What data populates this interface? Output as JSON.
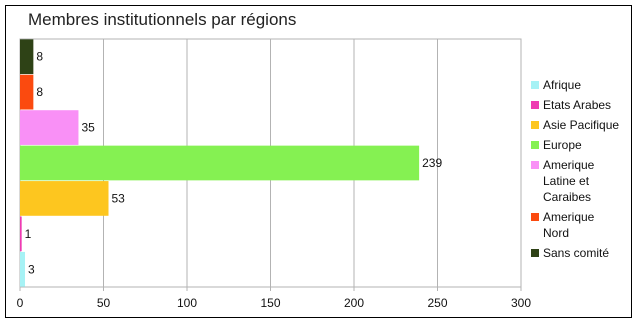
{
  "chart_data": {
    "type": "bar",
    "orientation": "horizontal",
    "title": "Membres institutionnels par régions",
    "xlabel": "",
    "ylabel": "",
    "xlim": [
      0,
      300
    ],
    "xticks": [
      0,
      50,
      100,
      150,
      200,
      250,
      300
    ],
    "grid": true,
    "legend_position": "right",
    "series": [
      {
        "name": "Afrique",
        "value": 3,
        "color": "#a6f2f5"
      },
      {
        "name": "Etats Arabes",
        "value": 1,
        "color": "#ee3bb2"
      },
      {
        "name": "Asie Pacifique",
        "value": 53,
        "color": "#fdc61f"
      },
      {
        "name": "Europe",
        "value": 239,
        "color": "#85f152"
      },
      {
        "name": "Amerique Latine et Caraibes",
        "value": 35,
        "color": "#f990f6"
      },
      {
        "name": "Amerique Nord",
        "value": 8,
        "color": "#fb4a0f"
      },
      {
        "name": "Sans comité",
        "value": 8,
        "color": "#2e4216"
      }
    ],
    "legend_lines": [
      [
        "Afrique"
      ],
      [
        "Etats Arabes"
      ],
      [
        "Asie Pacifique"
      ],
      [
        "Europe"
      ],
      [
        "Amerique",
        "Latine et",
        "Caraibes"
      ],
      [
        "Amerique",
        "Nord"
      ],
      [
        "Sans comité"
      ]
    ]
  }
}
